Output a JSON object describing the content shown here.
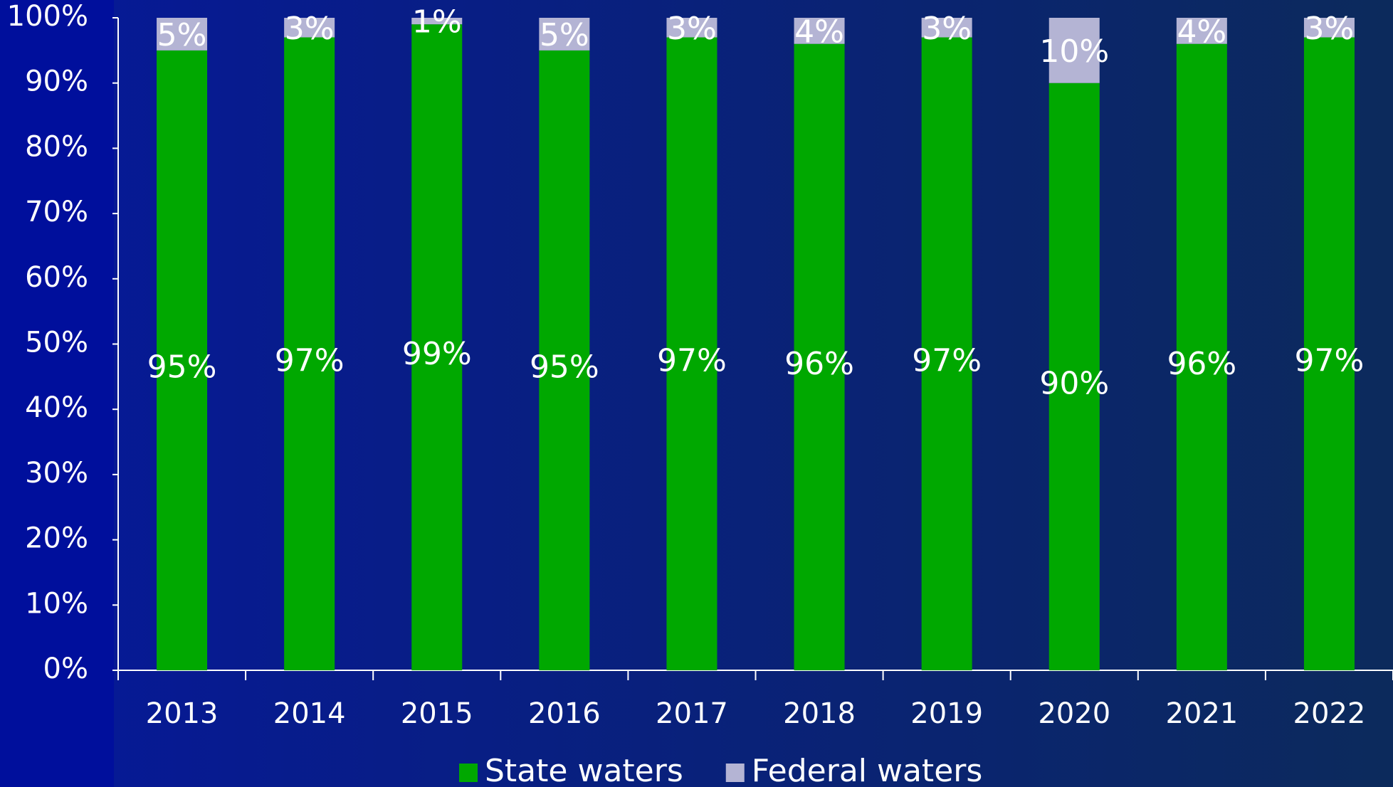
{
  "chart_data": {
    "type": "stacked_bar",
    "categories": [
      "2013",
      "2014",
      "2015",
      "2016",
      "2017",
      "2018",
      "2019",
      "2020",
      "2021",
      "2022"
    ],
    "series": [
      {
        "name": "State waters",
        "color": "#00a800",
        "values": [
          95,
          97,
          99,
          95,
          97,
          96,
          97,
          90,
          96,
          97
        ],
        "value_labels": [
          "95%",
          "97%",
          "99%",
          "95%",
          "97%",
          "96%",
          "97%",
          "90%",
          "96%",
          "97%"
        ]
      },
      {
        "name": "Federal waters",
        "color": "#b4b4d4",
        "values": [
          5,
          3,
          1,
          5,
          3,
          4,
          3,
          10,
          4,
          3
        ],
        "value_labels": [
          "5%",
          "3%",
          "1%",
          "5%",
          "3%",
          "4%",
          "3%",
          "10%",
          "4%",
          "3%"
        ]
      }
    ],
    "ylim": [
      0,
      100
    ],
    "yticks": [
      {
        "value": 0,
        "label": "0%"
      },
      {
        "value": 10,
        "label": "10%"
      },
      {
        "value": 20,
        "label": "20%"
      },
      {
        "value": 30,
        "label": "30%"
      },
      {
        "value": 40,
        "label": "40%"
      },
      {
        "value": 50,
        "label": "50%"
      },
      {
        "value": 60,
        "label": "60%"
      },
      {
        "value": 70,
        "label": "70%"
      },
      {
        "value": 80,
        "label": "80%"
      },
      {
        "value": 90,
        "label": "90%"
      },
      {
        "value": 100,
        "label": "100%"
      }
    ],
    "legend": "bottom"
  }
}
